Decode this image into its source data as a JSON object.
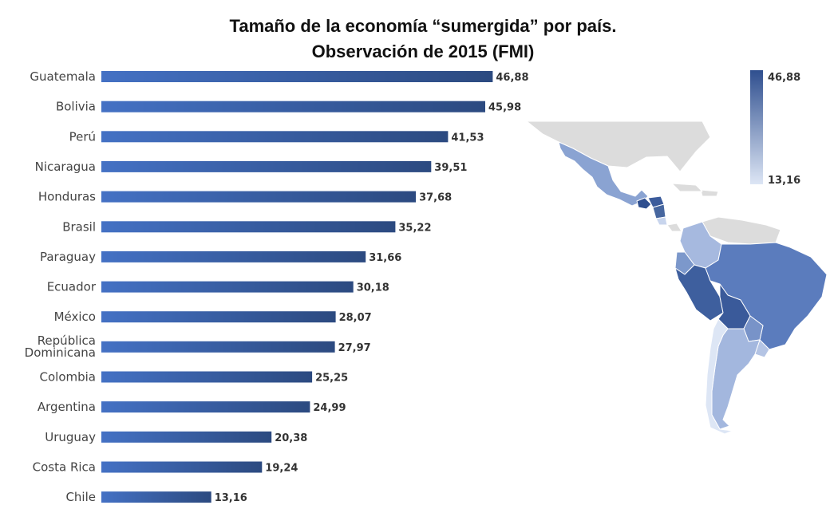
{
  "chart_data": {
    "type": "bar",
    "orientation": "horizontal",
    "title": "Tamaño de la economía “sumergida” por país.",
    "subtitle": "Observación de 2015 (FMI)",
    "categories": [
      "Guatemala",
      "Bolivia",
      "Perú",
      "Nicaragua",
      "Honduras",
      "Brasil",
      "Paraguay",
      "Ecuador",
      "México",
      "República Dominicana",
      "Colombia",
      "Argentina",
      "Uruguay",
      "Costa Rica",
      "Chile"
    ],
    "values": [
      46.88,
      45.98,
      41.53,
      39.51,
      37.68,
      35.22,
      31.66,
      30.18,
      28.07,
      27.97,
      25.25,
      24.99,
      20.38,
      19.24,
      13.16
    ],
    "value_labels": [
      "46,88",
      "45,98",
      "41,53",
      "39,51",
      "37,68",
      "35,22",
      "31,66",
      "30,18",
      "28,07",
      "27,97",
      "25,25",
      "24,99",
      "20,38",
      "19,24",
      "13,16"
    ],
    "xlim": [
      0,
      50
    ],
    "grid": false,
    "colors": {
      "bar_start": "#4471c4",
      "bar_end": "#2c4a80",
      "scale_max": "#2f4f8f",
      "scale_min": "#dde6f5",
      "no_data": "#dcdcdc"
    },
    "legend": {
      "type": "color-scale",
      "max_label": "46,88",
      "min_label": "13,16",
      "placement": "top-right"
    }
  },
  "map": {
    "type": "choropleth",
    "region": "Latin America",
    "highlighted_countries": [
      "México",
      "Guatemala",
      "Honduras",
      "Nicaragua",
      "Costa Rica",
      "Colombia",
      "Ecuador",
      "Perú",
      "Brasil",
      "Bolivia",
      "Paraguay",
      "Chile",
      "Argentina",
      "Uruguay"
    ]
  }
}
